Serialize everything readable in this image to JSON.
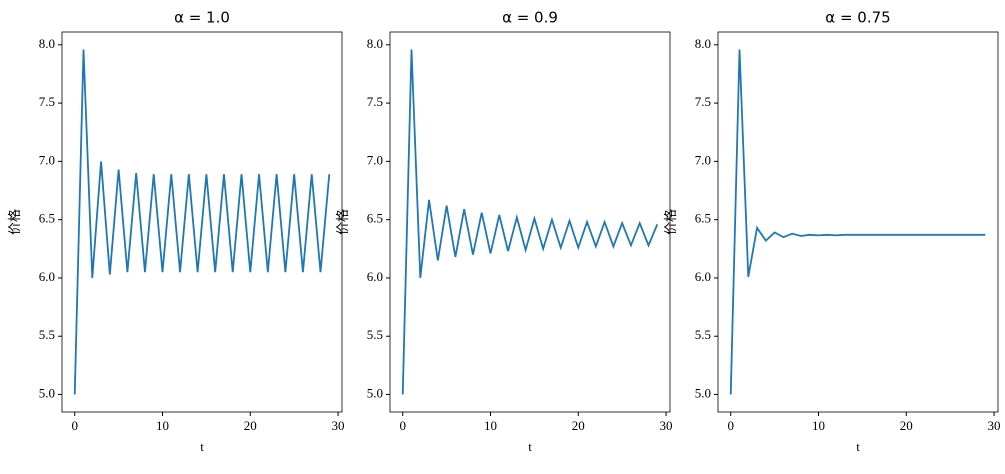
{
  "chart_data": [
    {
      "type": "line",
      "title": "α = 1.0",
      "xlabel": "t",
      "ylabel": "价格",
      "x": [
        0,
        1,
        2,
        3,
        4,
        5,
        6,
        7,
        8,
        9,
        10,
        11,
        12,
        13,
        14,
        15,
        16,
        17,
        18,
        19,
        20,
        21,
        22,
        23,
        24,
        25,
        26,
        27,
        28,
        29
      ],
      "values": [
        5.0,
        7.96,
        6.0,
        7.0,
        6.03,
        6.93,
        6.05,
        6.9,
        6.05,
        6.89,
        6.05,
        6.89,
        6.05,
        6.89,
        6.05,
        6.89,
        6.05,
        6.89,
        6.05,
        6.89,
        6.05,
        6.89,
        6.05,
        6.89,
        6.05,
        6.89,
        6.05,
        6.89,
        6.05,
        6.89
      ],
      "color": "#1f77b4",
      "xlim": [
        -1.45,
        30.45
      ],
      "ylim": [
        4.85,
        8.11
      ],
      "xticks": [
        0,
        10,
        20,
        30
      ],
      "yticks": [
        {
          "value": 5,
          "label": "5.0"
        },
        {
          "value": 5.5,
          "label": "5.5"
        },
        {
          "value": 6,
          "label": "6.0"
        },
        {
          "value": 6.5,
          "label": "6.5"
        },
        {
          "value": 7,
          "label": "7.0"
        },
        {
          "value": 7.5,
          "label": "7.5"
        },
        {
          "value": 8,
          "label": "8.0"
        }
      ]
    },
    {
      "type": "line",
      "title": "α = 0.9",
      "xlabel": "t",
      "ylabel": "价格",
      "x": [
        0,
        1,
        2,
        3,
        4,
        5,
        6,
        7,
        8,
        9,
        10,
        11,
        12,
        13,
        14,
        15,
        16,
        17,
        18,
        19,
        20,
        21,
        22,
        23,
        24,
        25,
        26,
        27,
        28,
        29
      ],
      "values": [
        5.0,
        7.96,
        6.0,
        6.67,
        6.15,
        6.62,
        6.18,
        6.59,
        6.2,
        6.56,
        6.21,
        6.54,
        6.23,
        6.52,
        6.24,
        6.51,
        6.25,
        6.5,
        6.26,
        6.49,
        6.26,
        6.48,
        6.27,
        6.48,
        6.27,
        6.47,
        6.28,
        6.47,
        6.28,
        6.46
      ],
      "color": "#1f77b4",
      "xlim": [
        -1.45,
        30.45
      ],
      "ylim": [
        4.85,
        8.11
      ],
      "xticks": [
        0,
        10,
        20,
        30
      ],
      "yticks": [
        {
          "value": 5,
          "label": "5.0"
        },
        {
          "value": 5.5,
          "label": "5.5"
        },
        {
          "value": 6,
          "label": "6.0"
        },
        {
          "value": 6.5,
          "label": "6.5"
        },
        {
          "value": 7,
          "label": "7.0"
        },
        {
          "value": 7.5,
          "label": "7.5"
        },
        {
          "value": 8,
          "label": "8.0"
        }
      ]
    },
    {
      "type": "line",
      "title": "α = 0.75",
      "xlabel": "t",
      "ylabel": "价格",
      "x": [
        0,
        1,
        2,
        3,
        4,
        5,
        6,
        7,
        8,
        9,
        10,
        11,
        12,
        13,
        14,
        15,
        16,
        17,
        18,
        19,
        20,
        21,
        22,
        23,
        24,
        25,
        26,
        27,
        28,
        29
      ],
      "values": [
        5.0,
        7.96,
        6.01,
        6.43,
        6.32,
        6.39,
        6.35,
        6.38,
        6.36,
        6.37,
        6.365,
        6.37,
        6.365,
        6.37,
        6.37,
        6.37,
        6.37,
        6.37,
        6.37,
        6.37,
        6.37,
        6.37,
        6.37,
        6.37,
        6.37,
        6.37,
        6.37,
        6.37,
        6.37,
        6.37
      ],
      "color": "#1f77b4",
      "xlim": [
        -1.45,
        30.45
      ],
      "ylim": [
        4.85,
        8.11
      ],
      "xticks": [
        0,
        10,
        20,
        30
      ],
      "yticks": [
        {
          "value": 5,
          "label": "5.0"
        },
        {
          "value": 5.5,
          "label": "5.5"
        },
        {
          "value": 6,
          "label": "6.0"
        },
        {
          "value": 6.5,
          "label": "6.5"
        },
        {
          "value": 7,
          "label": "7.0"
        },
        {
          "value": 7.5,
          "label": "7.5"
        },
        {
          "value": 8,
          "label": "8.0"
        }
      ]
    }
  ]
}
